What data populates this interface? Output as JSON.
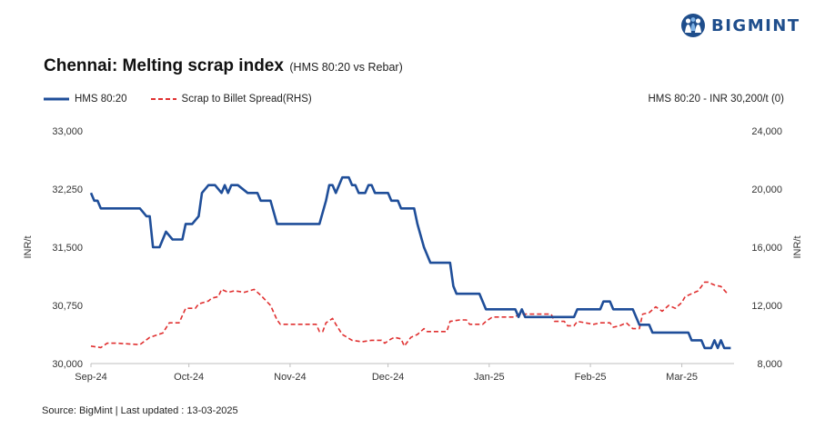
{
  "brand": {
    "name": "BIGMINT",
    "logo_icon": "people-logo-icon",
    "color": "#1f4e8c"
  },
  "title": "Chennai: Melting scrap index",
  "subtitle": "(HMS 80:20  vs Rebar)",
  "note": "HMS 80:20 - INR 30,200/t (0)",
  "source": "Source: BigMint | Last updated : 13-03-2025",
  "colors": {
    "series1": "#1f4e99",
    "series2": "#e03030"
  },
  "chart_data": {
    "type": "line",
    "legend_position": "top-left",
    "grid": false,
    "ylabel": "INR/t",
    "ylabel_right": "INR/t",
    "ylim": [
      30000,
      33000
    ],
    "ylim_right": [
      8000,
      24000
    ],
    "y_ticks": [
      "33,000",
      "32,250",
      "31,500",
      "30,750",
      "30,000"
    ],
    "y_ticks_right": [
      "24,000",
      "20,000",
      "16,000",
      "12,000",
      "8,000"
    ],
    "x_tick_labels": [
      "Sep-24",
      "Oct-24",
      "Nov-24",
      "Dec-24",
      "Jan-25",
      "Feb-25",
      "Mar-25"
    ],
    "series": [
      {
        "name": "HMS 80:20",
        "axis": "left",
        "style": "solid",
        "points": [
          [
            "2024-09-01",
            32200
          ],
          [
            "2024-09-02",
            32100
          ],
          [
            "2024-09-03",
            32100
          ],
          [
            "2024-09-04",
            32000
          ],
          [
            "2024-09-10",
            32000
          ],
          [
            "2024-09-16",
            32000
          ],
          [
            "2024-09-17",
            31950
          ],
          [
            "2024-09-18",
            31900
          ],
          [
            "2024-09-19",
            31900
          ],
          [
            "2024-09-20",
            31500
          ],
          [
            "2024-09-22",
            31500
          ],
          [
            "2024-09-24",
            31700
          ],
          [
            "2024-09-26",
            31600
          ],
          [
            "2024-09-29",
            31600
          ],
          [
            "2024-09-30",
            31800
          ],
          [
            "2024-10-02",
            31800
          ],
          [
            "2024-10-04",
            31900
          ],
          [
            "2024-10-05",
            32200
          ],
          [
            "2024-10-07",
            32300
          ],
          [
            "2024-10-09",
            32300
          ],
          [
            "2024-10-11",
            32200
          ],
          [
            "2024-10-12",
            32300
          ],
          [
            "2024-10-13",
            32200
          ],
          [
            "2024-10-14",
            32300
          ],
          [
            "2024-10-16",
            32300
          ],
          [
            "2024-10-19",
            32200
          ],
          [
            "2024-10-22",
            32200
          ],
          [
            "2024-10-23",
            32100
          ],
          [
            "2024-10-26",
            32100
          ],
          [
            "2024-10-28",
            31800
          ],
          [
            "2024-11-10",
            31800
          ],
          [
            "2024-11-12",
            32100
          ],
          [
            "2024-11-13",
            32300
          ],
          [
            "2024-11-14",
            32300
          ],
          [
            "2024-11-15",
            32200
          ],
          [
            "2024-11-17",
            32400
          ],
          [
            "2024-11-19",
            32400
          ],
          [
            "2024-11-20",
            32300
          ],
          [
            "2024-11-21",
            32300
          ],
          [
            "2024-11-22",
            32200
          ],
          [
            "2024-11-24",
            32200
          ],
          [
            "2024-11-25",
            32300
          ],
          [
            "2024-11-26",
            32300
          ],
          [
            "2024-11-27",
            32200
          ],
          [
            "2024-12-01",
            32200
          ],
          [
            "2024-12-02",
            32100
          ],
          [
            "2024-12-04",
            32100
          ],
          [
            "2024-12-05",
            32000
          ],
          [
            "2024-12-09",
            32000
          ],
          [
            "2024-12-10",
            31800
          ],
          [
            "2024-12-12",
            31500
          ],
          [
            "2024-12-14",
            31300
          ],
          [
            "2024-12-20",
            31300
          ],
          [
            "2024-12-21",
            31000
          ],
          [
            "2024-12-22",
            30900
          ],
          [
            "2024-12-29",
            30900
          ],
          [
            "2024-12-31",
            30700
          ],
          [
            "2025-01-09",
            30700
          ],
          [
            "2025-01-10",
            30600
          ],
          [
            "2025-01-11",
            30700
          ],
          [
            "2025-01-12",
            30600
          ],
          [
            "2025-01-27",
            30600
          ],
          [
            "2025-01-28",
            30700
          ],
          [
            "2025-02-04",
            30700
          ],
          [
            "2025-02-05",
            30800
          ],
          [
            "2025-02-07",
            30800
          ],
          [
            "2025-02-08",
            30700
          ],
          [
            "2025-02-14",
            30700
          ],
          [
            "2025-02-16",
            30500
          ],
          [
            "2025-02-19",
            30500
          ],
          [
            "2025-02-20",
            30400
          ],
          [
            "2025-03-03",
            30400
          ],
          [
            "2025-03-04",
            30300
          ],
          [
            "2025-03-07",
            30300
          ],
          [
            "2025-03-08",
            30200
          ],
          [
            "2025-03-10",
            30200
          ],
          [
            "2025-03-11",
            30300
          ],
          [
            "2025-03-12",
            30200
          ],
          [
            "2025-03-13",
            30300
          ],
          [
            "2025-03-14",
            30200
          ],
          [
            "2025-03-16",
            30200
          ]
        ]
      },
      {
        "name": "Scrap to Billet Spread(RHS)",
        "axis": "right",
        "style": "dashed",
        "points": [
          [
            "2024-09-01",
            9200
          ],
          [
            "2024-09-04",
            9100
          ],
          [
            "2024-09-06",
            9400
          ],
          [
            "2024-09-09",
            9400
          ],
          [
            "2024-09-16",
            9300
          ],
          [
            "2024-09-19",
            9800
          ],
          [
            "2024-09-23",
            10100
          ],
          [
            "2024-09-25",
            10800
          ],
          [
            "2024-09-28",
            10800
          ],
          [
            "2024-09-30",
            11800
          ],
          [
            "2024-10-03",
            11800
          ],
          [
            "2024-10-04",
            12100
          ],
          [
            "2024-10-07",
            12300
          ],
          [
            "2024-10-08",
            12500
          ],
          [
            "2024-10-10",
            12600
          ],
          [
            "2024-10-11",
            13100
          ],
          [
            "2024-10-13",
            12900
          ],
          [
            "2024-10-15",
            13000
          ],
          [
            "2024-10-18",
            12900
          ],
          [
            "2024-10-21",
            13100
          ],
          [
            "2024-10-23",
            12700
          ],
          [
            "2024-10-26",
            12000
          ],
          [
            "2024-10-28",
            11000
          ],
          [
            "2024-10-29",
            10700
          ],
          [
            "2024-11-05",
            10700
          ],
          [
            "2024-11-09",
            10700
          ],
          [
            "2024-11-10",
            10200
          ],
          [
            "2024-11-11",
            10200
          ],
          [
            "2024-11-12",
            10800
          ],
          [
            "2024-11-14",
            11100
          ],
          [
            "2024-11-15",
            10700
          ],
          [
            "2024-11-17",
            10000
          ],
          [
            "2024-11-20",
            9600
          ],
          [
            "2024-11-23",
            9500
          ],
          [
            "2024-11-26",
            9600
          ],
          [
            "2024-11-29",
            9600
          ],
          [
            "2024-11-30",
            9400
          ],
          [
            "2024-12-02",
            9700
          ],
          [
            "2024-12-03",
            9800
          ],
          [
            "2024-12-05",
            9700
          ],
          [
            "2024-12-06",
            9200
          ],
          [
            "2024-12-08",
            9800
          ],
          [
            "2024-12-10",
            10000
          ],
          [
            "2024-12-12",
            10400
          ],
          [
            "2024-12-13",
            10200
          ],
          [
            "2024-12-19",
            10200
          ],
          [
            "2024-12-20",
            10900
          ],
          [
            "2024-12-23",
            11000
          ],
          [
            "2024-12-25",
            11000
          ],
          [
            "2024-12-26",
            10700
          ],
          [
            "2024-12-30",
            10700
          ],
          [
            "2024-12-31",
            10900
          ],
          [
            "2025-01-02",
            11200
          ],
          [
            "2025-01-09",
            11200
          ],
          [
            "2025-01-10",
            11400
          ],
          [
            "2025-01-16",
            11400
          ],
          [
            "2025-01-20",
            11400
          ],
          [
            "2025-01-21",
            10900
          ],
          [
            "2025-01-24",
            10900
          ],
          [
            "2025-01-25",
            10600
          ],
          [
            "2025-01-27",
            10600
          ],
          [
            "2025-01-28",
            10900
          ],
          [
            "2025-02-02",
            10700
          ],
          [
            "2025-02-04",
            10800
          ],
          [
            "2025-02-07",
            10800
          ],
          [
            "2025-02-08",
            10500
          ],
          [
            "2025-02-10",
            10600
          ],
          [
            "2025-02-12",
            10800
          ],
          [
            "2025-02-14",
            10400
          ],
          [
            "2025-02-16",
            10400
          ],
          [
            "2025-02-17",
            11400
          ],
          [
            "2025-02-19",
            11500
          ],
          [
            "2025-02-21",
            11900
          ],
          [
            "2025-02-23",
            11600
          ],
          [
            "2025-02-25",
            12000
          ],
          [
            "2025-02-27",
            11800
          ],
          [
            "2025-02-28",
            12000
          ],
          [
            "2025-03-01",
            12200
          ],
          [
            "2025-03-02",
            12600
          ],
          [
            "2025-03-04",
            12800
          ],
          [
            "2025-03-06",
            13000
          ],
          [
            "2025-03-08",
            13600
          ],
          [
            "2025-03-09",
            13600
          ],
          [
            "2025-03-11",
            13400
          ],
          [
            "2025-03-13",
            13300
          ],
          [
            "2025-03-15",
            12800
          ]
        ]
      }
    ]
  }
}
